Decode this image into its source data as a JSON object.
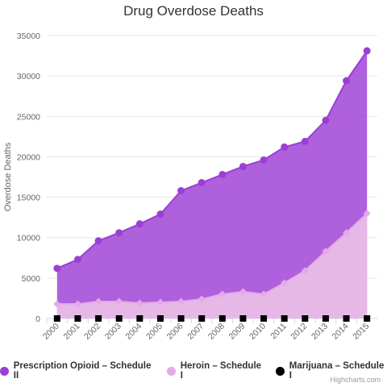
{
  "chart_data": {
    "type": "area",
    "title": "Drug Overdose Deaths",
    "ylabel": "Overdose Deaths",
    "xlabel": "",
    "ylim": [
      0,
      35000
    ],
    "yticks": [
      0,
      5000,
      10000,
      15000,
      20000,
      25000,
      30000,
      35000
    ],
    "categories": [
      "2000",
      "2001",
      "2002",
      "2003",
      "2004",
      "2005",
      "2006",
      "2007",
      "2008",
      "2009",
      "2010",
      "2011",
      "2012",
      "2013",
      "2014",
      "2015"
    ],
    "grid": true,
    "legend_position": "bottom",
    "series": [
      {
        "name": "Prescription Opioid – Schedule II",
        "color": "#9b3fd4",
        "fill": "#a64fd8",
        "marker": "circle",
        "values": [
          6200,
          7300,
          9600,
          10600,
          11700,
          12900,
          15800,
          16800,
          17800,
          18800,
          19600,
          21200,
          21900,
          24500,
          29400,
          33100
        ]
      },
      {
        "name": "Heroin – Schedule I",
        "color": "#e3a9e8",
        "fill": "#e9bde6",
        "marker": "diamond",
        "values": [
          1800,
          1800,
          2100,
          2100,
          1900,
          2000,
          2100,
          2400,
          3000,
          3300,
          3000,
          4400,
          5900,
          8300,
          10600,
          13000
        ]
      },
      {
        "name": "Marijuana – Schedule I",
        "color": "#000000",
        "fill": "#000000",
        "marker": "square",
        "values": [
          0,
          0,
          0,
          0,
          0,
          0,
          0,
          0,
          0,
          0,
          0,
          0,
          0,
          0,
          0,
          0
        ]
      }
    ]
  },
  "credits": "Highcharts.com"
}
